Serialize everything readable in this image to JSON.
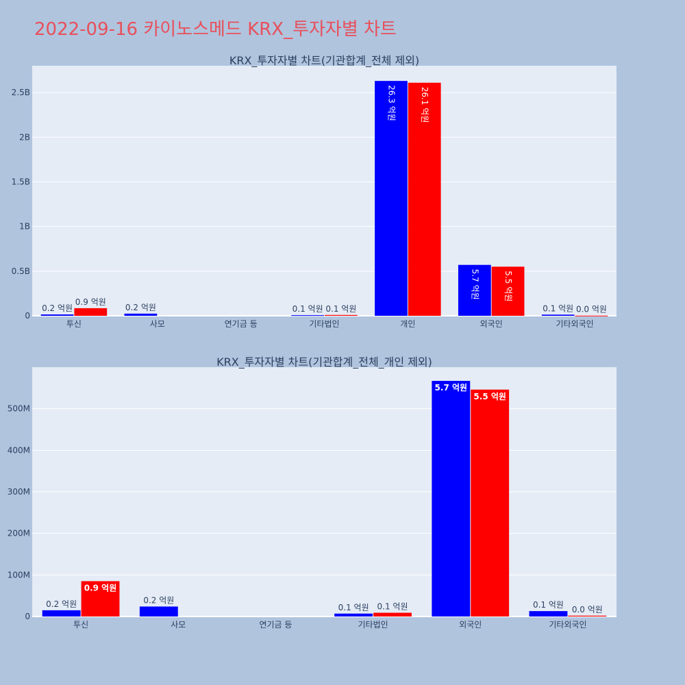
{
  "page_title": "2022-09-16 카이노스메드 KRX_투자자별 차트",
  "colors": {
    "background": "#b0c4de",
    "plot_bg": "#e5ecf6",
    "series_1": "#0000ff",
    "series_2": "#ff0000",
    "title": "#e8505b"
  },
  "chart_data": [
    {
      "type": "bar",
      "title": "KRX_투자자별 차트(기관합계_전체 제외)",
      "categories": [
        "투신",
        "사모",
        "연기금 등",
        "기타법인",
        "개인",
        "외국인",
        "기타외국인"
      ],
      "series": [
        {
          "values": [
            15000000,
            24000000,
            0,
            7000000,
            2630000000,
            570000000,
            13000000
          ],
          "labels": [
            "0.2 억원",
            "0.2 억원",
            "",
            "0.1 억원",
            "26.3 억원",
            "5.7 억원",
            "0.1 억원"
          ]
        },
        {
          "values": [
            85000000,
            0,
            0,
            9000000,
            2610000000,
            550000000,
            2000000
          ],
          "labels": [
            "0.9 억원",
            "",
            "",
            "0.1 억원",
            "26.1 억원",
            "5.5 억원",
            "0.0 억원"
          ]
        }
      ],
      "ylim": [
        0,
        2800000000
      ],
      "yticks": [
        0,
        500000000,
        1000000000,
        1500000000,
        2000000000,
        2500000000
      ],
      "ytick_labels": [
        "0",
        "0.5B",
        "1B",
        "1.5B",
        "2B",
        "2.5B"
      ],
      "grid": true
    },
    {
      "type": "bar",
      "title": "KRX_투자자별 차트(기관합계_전체_개인 제외)",
      "categories": [
        "투신",
        "사모",
        "연기금 등",
        "기타법인",
        "외국인",
        "기타외국인"
      ],
      "series": [
        {
          "values": [
            15000000,
            24000000,
            0,
            7000000,
            567000000,
            13000000
          ],
          "labels": [
            "0.2 억원",
            "0.2 억원",
            "",
            "0.1 억원",
            "5.7 억원",
            "0.1 억원"
          ]
        },
        {
          "values": [
            85000000,
            0,
            0,
            9000000,
            546000000,
            2000000
          ],
          "labels": [
            "0.9 억원",
            "",
            "",
            "0.1 억원",
            "5.5 억원",
            "0.0 억원"
          ]
        }
      ],
      "ylim": [
        0,
        600000000
      ],
      "yticks": [
        0,
        100000000,
        200000000,
        300000000,
        400000000,
        500000000
      ],
      "ytick_labels": [
        "0",
        "100M",
        "200M",
        "300M",
        "400M",
        "500M"
      ],
      "grid": true
    }
  ]
}
